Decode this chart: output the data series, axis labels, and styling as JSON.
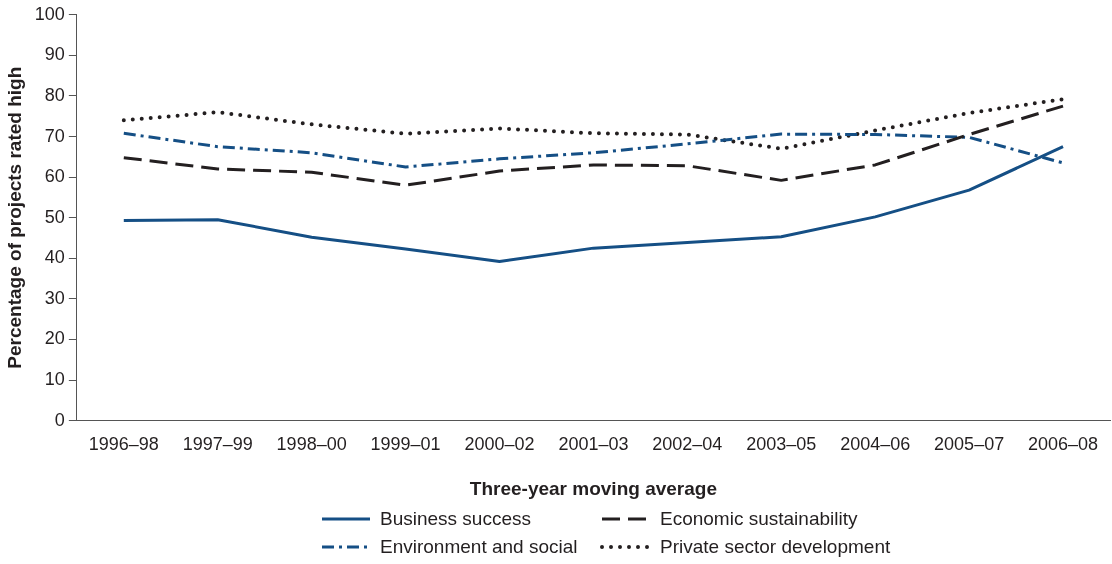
{
  "chart_data": {
    "type": "line",
    "xlabel": "Three-year moving average",
    "ylabel": "Percentage of projects rated high",
    "categories": [
      "1996–98",
      "1997–99",
      "1998–00",
      "1999–01",
      "2000–02",
      "2001–03",
      "2002–04",
      "2003–05",
      "2004–06",
      "2005–07",
      "2006–08"
    ],
    "ylim": [
      0,
      100
    ],
    "yticks": [
      0,
      10,
      20,
      30,
      40,
      50,
      60,
      70,
      80,
      90,
      100
    ],
    "grid": false,
    "legend": "bottom",
    "marker": "none",
    "series": [
      {
        "name": "Business success",
        "color": "#154f85",
        "line_style": "solid",
        "values": [
          49.3,
          49.5,
          45.2,
          42.3,
          39.2,
          42.5,
          43.9,
          45.3,
          50.2,
          56.8,
          67.5
        ]
      },
      {
        "name": "Economic sustainability",
        "color": "#231f20",
        "line_style": "dashed",
        "values": [
          64.8,
          62,
          61.2,
          58,
          61.5,
          63,
          62.8,
          59.2,
          63,
          70.5,
          77.5
        ]
      },
      {
        "name": "Environment and social",
        "color": "#154f85",
        "line_style": "dashdot",
        "values": [
          70.8,
          67.5,
          66,
          62.5,
          64.5,
          66,
          68.2,
          70.6,
          70.5,
          69.8,
          63.5
        ]
      },
      {
        "name": "Private sector development",
        "color": "#231f20",
        "line_style": "dotted",
        "values": [
          74,
          76,
          73,
          70.7,
          72,
          70.8,
          70.5,
          67,
          71.5,
          75.8,
          79.2
        ]
      }
    ]
  }
}
